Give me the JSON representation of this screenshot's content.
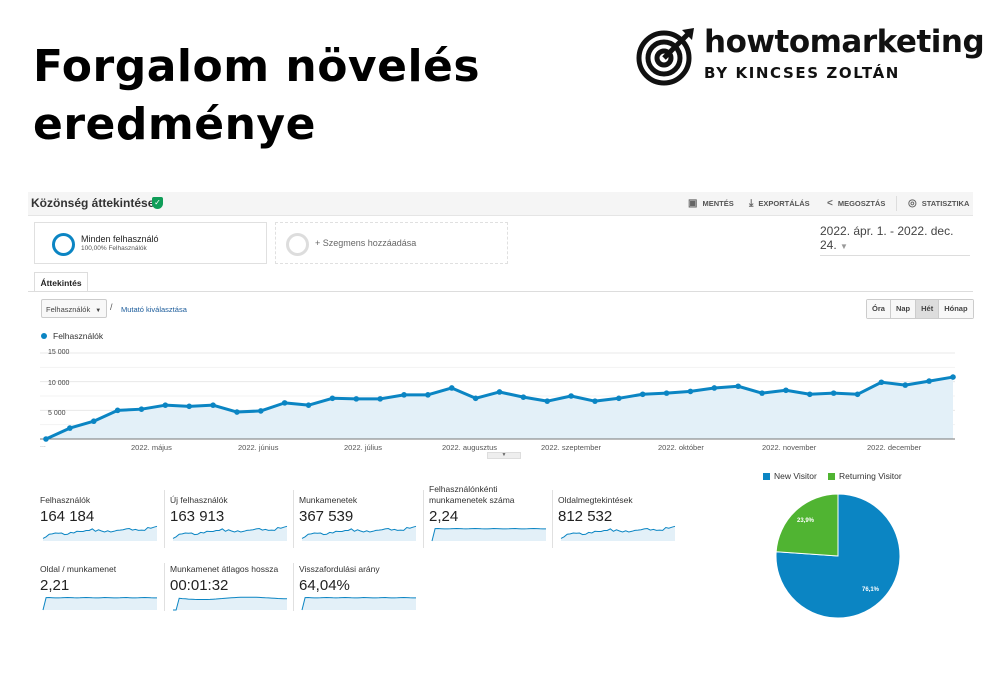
{
  "page": {
    "title": "Forgalom növelés eredménye"
  },
  "logo": {
    "brand": "howtomarketing",
    "byline": "BY KINCSES ZOLTÁN"
  },
  "ga": {
    "title": "Közönség áttekintése",
    "toolbar": {
      "save": "MENTÉS",
      "export": "EXPORTÁLÁS",
      "share": "MEGOSZTÁS",
      "stats": "STATISZTIKA"
    },
    "segment": {
      "name": "Minden felhasználó",
      "sub": "100,00% Felhasználók",
      "add": "+ Szegmens hozzáadása"
    },
    "date_range": "2022. ápr. 1. - 2022. dec. 24.",
    "tab": "Áttekintés",
    "metric_select": "Felhasználók",
    "separator": "/",
    "choose_metric": "Mutató kiválasztása",
    "periods": [
      "Óra",
      "Nap",
      "Hét",
      "Hónap"
    ],
    "active_period": "Hét",
    "legend": "Felhasználók",
    "dots": "...",
    "metrics": [
      {
        "label": "Felhasználók",
        "value": "164 184",
        "trend": "growth"
      },
      {
        "label": "Új felhasználók",
        "value": "163 913",
        "trend": "growth"
      },
      {
        "label": "Munkamenetek",
        "value": "367 539",
        "trend": "growth"
      },
      {
        "label": "Felhasználónkénti munkamenetek száma",
        "value": "2,24",
        "trend": "flat"
      },
      {
        "label": "Oldalmegtekintések",
        "value": "812 532",
        "trend": "growth"
      },
      {
        "label": "Oldal / munkamenet",
        "value": "2,21",
        "trend": "flat"
      },
      {
        "label": "Munkamenet átlagos hossza",
        "value": "00:01:32",
        "trend": "dip"
      },
      {
        "label": "Visszafordulási arány",
        "value": "64,04%",
        "trend": "flat"
      }
    ]
  },
  "colors": {
    "primary": "#0b85c3",
    "returning": "#50b432",
    "fill": "#e3f0f8"
  },
  "chart_data": [
    {
      "type": "line",
      "title": "Felhasználók",
      "ylim": [
        0,
        15000
      ],
      "yticks": [
        "15 000",
        "10 000",
        "5 000"
      ],
      "ytick_values": [
        15000,
        10000,
        5000
      ],
      "xticks": [
        "2022. május",
        "2022. június",
        "2022. július",
        "2022. augusztus",
        "2022. szeptember",
        "2022. október",
        "2022. november",
        "2022. december"
      ],
      "series": [
        {
          "name": "Felhasználók",
          "values": [
            0,
            1900,
            3100,
            5000,
            5200,
            5900,
            5700,
            5900,
            4700,
            4900,
            6300,
            5900,
            7100,
            7000,
            7000,
            7700,
            7700,
            8900,
            7100,
            8200,
            7300,
            6600,
            7500,
            6600,
            7100,
            7800,
            8000,
            8300,
            8900,
            9200,
            8000,
            8500,
            7800,
            8000,
            7800,
            9900,
            9400,
            10100,
            10800
          ]
        }
      ]
    },
    {
      "type": "pie",
      "legend": [
        "New Visitor",
        "Returning Visitor"
      ],
      "values": [
        76.1,
        23.9
      ],
      "labels": [
        "76,1%",
        "23,9%"
      ]
    }
  ]
}
